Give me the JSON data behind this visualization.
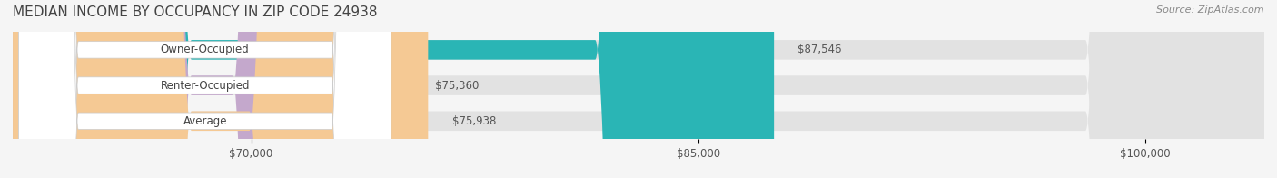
{
  "title": "MEDIAN INCOME BY OCCUPANCY IN ZIP CODE 24938",
  "source": "Source: ZipAtlas.com",
  "categories": [
    "Owner-Occupied",
    "Renter-Occupied",
    "Average"
  ],
  "values": [
    87546,
    75360,
    75938
  ],
  "labels": [
    "$87,546",
    "$75,360",
    "$75,938"
  ],
  "bar_colors": [
    "#2ab5b5",
    "#c4a8cc",
    "#f5c994"
  ],
  "bar_edge_colors": [
    "#2ab5b5",
    "#c4a8cc",
    "#f5c994"
  ],
  "background_color": "#f0f0f0",
  "bar_bg_color": "#e8e8e8",
  "xlim_min": 62000,
  "xlim_max": 104000,
  "xticks": [
    70000,
    85000,
    100000
  ],
  "xtick_labels": [
    "$70,000",
    "$85,000",
    "$100,000"
  ],
  "title_fontsize": 11,
  "source_fontsize": 8,
  "label_fontsize": 8.5,
  "tick_fontsize": 8.5,
  "bar_height": 0.55
}
